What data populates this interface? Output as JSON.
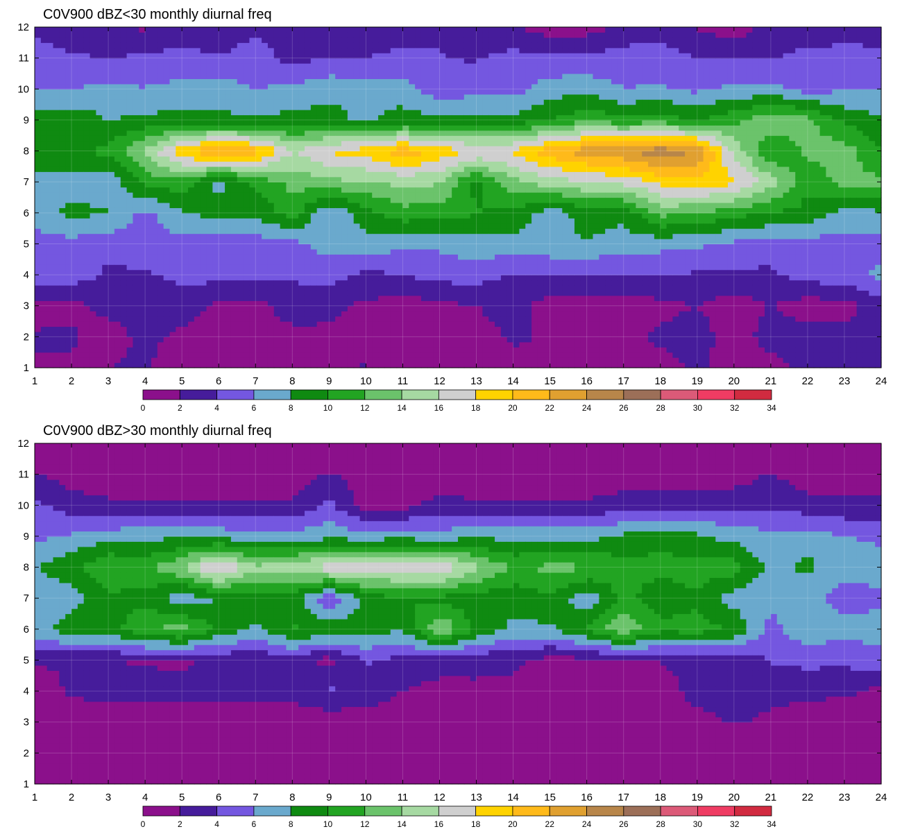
{
  "colors": [
    "#8b108b",
    "#461c9b",
    "#7457e0",
    "#6aa9cd",
    "#0f8a11",
    "#22a422",
    "#6bc36b",
    "#a6d9a2",
    "#cfcfcf",
    "#ffd300",
    "#ffba1a",
    "#e0a030",
    "#b8864a",
    "#9c6f58",
    "#dc5a78",
    "#ef3c63",
    "#d12b40"
  ],
  "contour_line_color": "#e6b23a",
  "chart_data": [
    {
      "type": "heatmap",
      "title": "C0V900 dBZ<30 monthly diurnal freq",
      "x_ticks": [
        1,
        2,
        3,
        4,
        5,
        6,
        7,
        8,
        9,
        10,
        11,
        12,
        13,
        14,
        15,
        16,
        17,
        18,
        19,
        20,
        21,
        22,
        23,
        24
      ],
      "y_ticks": [
        1,
        2,
        3,
        4,
        5,
        6,
        7,
        8,
        9,
        10,
        11,
        12
      ],
      "xlim": [
        1,
        24
      ],
      "ylim": [
        1,
        12
      ],
      "grid": true,
      "colorbar_levels": [
        0,
        2,
        4,
        6,
        8,
        10,
        12,
        14,
        16,
        18,
        20,
        22,
        24,
        26,
        28,
        30,
        32,
        34
      ],
      "rows": [
        {
          "y": 1,
          "values": [
            1.8,
            1.7,
            2.0,
            2.3,
            0.5,
            0.8,
            1.0,
            1.2,
            1.8,
            2.1,
            1.3,
            0.9,
            1.0,
            1.3,
            1.0,
            0.6,
            0.5,
            1.0,
            2.4,
            1.0,
            1.1,
            2.5,
            2.5,
            2.6
          ]
        },
        {
          "y": 2,
          "values": [
            2.2,
            2.3,
            1.0,
            2.6,
            1.5,
            1.0,
            0.9,
            1.4,
            1.6,
            1.3,
            1.1,
            1.1,
            1.1,
            2.3,
            1.8,
            0.7,
            1.1,
            2.5,
            3.0,
            0.8,
            3.0,
            3.1,
            2.7,
            3.2
          ]
        },
        {
          "y": 3,
          "values": [
            1.3,
            1.4,
            2.6,
            3.3,
            3.1,
            1.4,
            1.3,
            3.0,
            2.5,
            1.6,
            1.0,
            1.4,
            2.0,
            2.8,
            1.0,
            0.6,
            0.8,
            1.4,
            2.0,
            0.9,
            2.1,
            0.9,
            1.2,
            3.0
          ]
        },
        {
          "y": 4,
          "values": [
            6.0,
            5.0,
            3.6,
            3.8,
            4.4,
            4.8,
            4.6,
            4.3,
            4.8,
            3.6,
            3.9,
            4.8,
            4.8,
            3.8,
            4.0,
            4.0,
            3.8,
            4.2,
            3.7,
            3.6,
            3.6,
            5.0,
            5.0,
            6.5
          ]
        },
        {
          "y": 5,
          "values": [
            5.0,
            5.3,
            4.8,
            5.1,
            5.2,
            4.5,
            5.1,
            5.4,
            6.9,
            7.1,
            6.6,
            6.4,
            7.3,
            7.2,
            7.4,
            7.8,
            7.0,
            6.6,
            6.3,
            5.5,
            5.0,
            5.0,
            5.4,
            5.2
          ]
        },
        {
          "y": 6,
          "values": [
            7.2,
            8.5,
            8.1,
            5.4,
            7.8,
            8.9,
            8.4,
            11.0,
            6.0,
            9.2,
            11.2,
            11.0,
            10.1,
            9.5,
            6.7,
            9.0,
            8.6,
            12.6,
            12.0,
            10.7,
            10.0,
            9.3,
            7.2,
            7.7
          ]
        },
        {
          "y": 7,
          "values": [
            7.0,
            7.4,
            6.5,
            10.5,
            11.4,
            7.2,
            10.6,
            12.6,
            13.5,
            13.7,
            14.6,
            14.2,
            9.4,
            13.4,
            15.0,
            15.8,
            16.5,
            18.5,
            19.6,
            18.4,
            15.0,
            10.5,
            12.6,
            12.4
          ]
        },
        {
          "y": 8,
          "values": [
            10.0,
            9.4,
            10.6,
            14.6,
            19.5,
            22.6,
            21.0,
            16.0,
            18.3,
            19.1,
            21.4,
            19.4,
            18.0,
            18.3,
            21.5,
            23.1,
            23.9,
            25.4,
            23.9,
            15.3,
            10.0,
            12.5,
            13.1,
            10.0
          ]
        },
        {
          "y": 9,
          "values": [
            8.6,
            9.5,
            8.0,
            8.4,
            8.8,
            8.4,
            8.5,
            8.6,
            8.8,
            7.5,
            9.0,
            8.6,
            8.6,
            8.6,
            10.0,
            11.6,
            10.5,
            11.2,
            9.6,
            11.5,
            13.6,
            12.6,
            9.6,
            8.1
          ]
        },
        {
          "y": 10,
          "values": [
            6.0,
            6.0,
            6.4,
            6.1,
            6.6,
            7.1,
            6.0,
            6.5,
            7.5,
            7.0,
            6.8,
            4.6,
            5.5,
            5.2,
            7.0,
            7.3,
            6.0,
            6.2,
            5.6,
            6.4,
            6.6,
            5.2,
            5.8,
            5.9
          ]
        },
        {
          "y": 11,
          "values": [
            4.6,
            4.4,
            3.9,
            4.5,
            4.7,
            4.2,
            4.9,
            3.4,
            4.0,
            4.0,
            4.8,
            4.1,
            3.8,
            4.7,
            4.5,
            4.4,
            5.2,
            5.1,
            4.0,
            4.0,
            3.8,
            5.1,
            4.6,
            4.5
          ]
        },
        {
          "y": 12,
          "values": [
            3.9,
            2.6,
            2.2,
            1.7,
            3.0,
            2.4,
            3.8,
            2.6,
            2.4,
            2.8,
            2.4,
            3.8,
            3.5,
            2.2,
            0.9,
            1.1,
            2.2,
            3.0,
            1.9,
            0.8,
            2.6,
            2.1,
            3.4,
            3.0
          ]
        }
      ]
    },
    {
      "type": "heatmap",
      "title": "C0V900 dBZ>30 monthly diurnal freq",
      "x_ticks": [
        1,
        2,
        3,
        4,
        5,
        6,
        7,
        8,
        9,
        10,
        11,
        12,
        13,
        14,
        15,
        16,
        17,
        18,
        19,
        20,
        21,
        22,
        23,
        24
      ],
      "y_ticks": [
        1,
        2,
        3,
        4,
        5,
        6,
        7,
        8,
        9,
        10,
        11,
        12
      ],
      "xlim": [
        1,
        24
      ],
      "ylim": [
        1,
        12
      ],
      "grid": true,
      "colorbar_levels": [
        0,
        2,
        4,
        6,
        8,
        10,
        12,
        14,
        16,
        18,
        20,
        22,
        24,
        26,
        28,
        30,
        32,
        34
      ],
      "rows": [
        {
          "y": 1,
          "values": [
            0.1,
            0.1,
            0.1,
            0.1,
            0.1,
            0.1,
            0.1,
            0.1,
            0.1,
            0.1,
            0.1,
            0.1,
            0.1,
            0.1,
            0.1,
            0.1,
            0.1,
            0.1,
            0.1,
            0.1,
            0.1,
            0.1,
            0.1,
            0.1
          ]
        },
        {
          "y": 2,
          "values": [
            0.2,
            0.2,
            0.2,
            0.2,
            0.2,
            0.2,
            0.2,
            0.2,
            0.2,
            0.2,
            0.2,
            0.2,
            0.2,
            0.2,
            0.2,
            0.2,
            0.2,
            0.2,
            0.2,
            0.2,
            0.2,
            0.2,
            0.2,
            0.2
          ]
        },
        {
          "y": 3,
          "values": [
            0.4,
            0.5,
            0.5,
            0.5,
            0.5,
            0.5,
            0.5,
            0.5,
            0.5,
            0.5,
            0.5,
            0.5,
            0.5,
            0.5,
            0.5,
            0.5,
            0.5,
            0.5,
            1.4,
            2.2,
            1.6,
            0.6,
            0.1,
            0.3
          ]
        },
        {
          "y": 4,
          "values": [
            1.0,
            2.3,
            2.8,
            2.8,
            2.8,
            2.8,
            2.8,
            2.7,
            4.3,
            3.6,
            2.0,
            1.5,
            1.8,
            1.3,
            0.9,
            1.2,
            1.0,
            1.3,
            2.6,
            2.6,
            2.6,
            2.6,
            2.5,
            1.4
          ]
        },
        {
          "y": 5,
          "values": [
            2.2,
            2.1,
            2.1,
            1.8,
            1.6,
            2.5,
            2.2,
            3.3,
            1.1,
            4.2,
            3.2,
            2.6,
            2.3,
            2.5,
            1.2,
            1.4,
            1.5,
            2.1,
            2.3,
            2.4,
            4.2,
            4.5,
            4.4,
            5.5
          ]
        },
        {
          "y": 6,
          "values": [
            7.3,
            9.3,
            8.8,
            11.9,
            12.9,
            9.5,
            7.6,
            10.2,
            9.6,
            9.0,
            8.0,
            14.0,
            9.6,
            7.6,
            7.6,
            10.4,
            13.7,
            10.6,
            10.8,
            9.8,
            5.3,
            7.5,
            6.7,
            6.7
          ]
        },
        {
          "y": 7,
          "values": [
            5.8,
            7.0,
            9.5,
            9.2,
            6.7,
            8.1,
            8.8,
            9.1,
            4.2,
            8.3,
            10.1,
            9.5,
            8.8,
            8.6,
            9.5,
            6.6,
            10.6,
            8.7,
            9.6,
            7.1,
            6.5,
            6.6,
            5.0,
            5.7
          ]
        },
        {
          "y": 8,
          "values": [
            8.0,
            9.5,
            12.2,
            11.4,
            14.0,
            18.8,
            14.5,
            15.3,
            17.2,
            17.9,
            16.9,
            17.6,
            14.6,
            11.7,
            12.6,
            12.3,
            10.9,
            10.5,
            11.0,
            11.0,
            7.2,
            8.5,
            6.9,
            6.6
          ]
        },
        {
          "y": 9,
          "values": [
            5.6,
            6.3,
            7.0,
            7.5,
            7.6,
            7.3,
            6.8,
            6.7,
            7.3,
            7.0,
            7.3,
            6.9,
            7.6,
            7.5,
            7.5,
            7.3,
            8.5,
            9.4,
            8.4,
            7.2,
            6.6,
            7.0,
            6.0,
            5.7
          ]
        },
        {
          "y": 10,
          "values": [
            4.5,
            2.9,
            2.4,
            2.4,
            2.3,
            2.3,
            2.4,
            2.3,
            4.5,
            1.2,
            1.4,
            2.8,
            2.3,
            2.3,
            2.4,
            2.3,
            3.0,
            3.0,
            3.4,
            3.4,
            3.5,
            2.9,
            2.5,
            2.5
          ]
        },
        {
          "y": 11,
          "values": [
            2.2,
            1.0,
            0.8,
            0.6,
            0.6,
            0.7,
            0.8,
            0.9,
            2.2,
            1.0,
            0.8,
            0.6,
            0.6,
            0.6,
            0.6,
            0.7,
            0.8,
            0.9,
            0.8,
            1.0,
            2.2,
            0.8,
            0.6,
            0.6
          ]
        },
        {
          "y": 12,
          "values": [
            0.3,
            0.3,
            0.3,
            0.3,
            0.3,
            0.3,
            0.3,
            0.3,
            0.3,
            0.3,
            0.3,
            0.3,
            0.3,
            0.3,
            0.3,
            0.3,
            0.3,
            0.3,
            0.3,
            0.3,
            0.3,
            0.3,
            0.3,
            0.3
          ]
        }
      ]
    }
  ]
}
